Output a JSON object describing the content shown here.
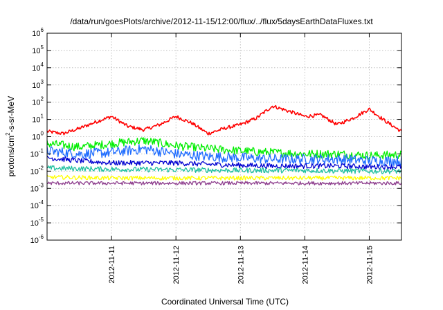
{
  "chart_data": {
    "type": "line",
    "title": "/data/run/goesPlots/archive/2012-11-15/12:00/flux/../flux/5daysEarthDataFluxes.txt",
    "xlabel": "Coordinated Universal Time (UTC)",
    "ylabel_parts": {
      "base": "protons/cm",
      "sup": "2",
      "tail": "-s-sr-MeV"
    },
    "xlim": [
      "2012-11-10 00:00",
      "2012-11-15 12:00"
    ],
    "ylim": [
      1e-06,
      1000000.0
    ],
    "yscale": "log",
    "grid": true,
    "x_ticks": [
      "2012-11-11",
      "2012-11-12",
      "2012-11-13",
      "2012-11-14",
      "2012-11-15"
    ],
    "y_ticks": [
      {
        "base": "10",
        "exp": "-6",
        "value": 1e-06
      },
      {
        "base": "10",
        "exp": "-5",
        "value": 1e-05
      },
      {
        "base": "10",
        "exp": "-4",
        "value": 0.0001
      },
      {
        "base": "10",
        "exp": "-3",
        "value": 0.001
      },
      {
        "base": "10",
        "exp": "-2",
        "value": 0.01
      },
      {
        "base": "10",
        "exp": "-1",
        "value": 0.1
      },
      {
        "base": "10",
        "exp": "0",
        "value": 1
      },
      {
        "base": "10",
        "exp": "1",
        "value": 10
      },
      {
        "base": "10",
        "exp": "2",
        "value": 100
      },
      {
        "base": "10",
        "exp": "3",
        "value": 1000
      },
      {
        "base": "10",
        "exp": "4",
        "value": 10000
      },
      {
        "base": "10",
        "exp": "5",
        "value": 100000
      },
      {
        "base": "10",
        "exp": "6",
        "value": 1000000
      }
    ],
    "series": [
      {
        "color": "#ff0000",
        "noise": 0.1,
        "x": [
          "2012-11-10 00:00",
          "2012-11-10 06:00",
          "2012-11-10 12:00",
          "2012-11-10 18:00",
          "2012-11-11 00:00",
          "2012-11-11 06:00",
          "2012-11-11 12:00",
          "2012-11-11 18:00",
          "2012-11-12 00:00",
          "2012-11-12 06:00",
          "2012-11-12 12:00",
          "2012-11-12 18:00",
          "2012-11-13 00:00",
          "2012-11-13 06:00",
          "2012-11-13 12:00",
          "2012-11-13 18:00",
          "2012-11-14 00:00",
          "2012-11-14 06:00",
          "2012-11-14 12:00",
          "2012-11-14 18:00",
          "2012-11-15 00:00",
          "2012-11-15 06:00",
          "2012-11-15 12:00"
        ],
        "values": [
          2.0,
          1.5,
          3.0,
          7.0,
          15,
          4.0,
          2.5,
          5.0,
          15,
          6.0,
          1.5,
          3.0,
          5.0,
          12,
          60,
          30,
          15,
          18,
          5.0,
          12,
          40,
          8.0,
          2.0
        ]
      },
      {
        "color": "#00ee00",
        "noise": 0.25,
        "x": [
          "2012-11-10 00:00",
          "2012-11-10 12:00",
          "2012-11-11 00:00",
          "2012-11-11 12:00",
          "2012-11-12 00:00",
          "2012-11-12 12:00",
          "2012-11-13 00:00",
          "2012-11-13 12:00",
          "2012-11-14 00:00",
          "2012-11-14 12:00",
          "2012-11-15 00:00",
          "2012-11-15 12:00"
        ],
        "values": [
          0.4,
          0.25,
          0.4,
          0.6,
          0.3,
          0.2,
          0.15,
          0.12,
          0.1,
          0.1,
          0.08,
          0.09
        ]
      },
      {
        "color": "#1e6cff",
        "noise": 0.3,
        "x": [
          "2012-11-10 00:00",
          "2012-11-10 12:00",
          "2012-11-11 00:00",
          "2012-11-11 12:00",
          "2012-11-12 00:00",
          "2012-11-12 12:00",
          "2012-11-13 00:00",
          "2012-11-13 12:00",
          "2012-11-14 00:00",
          "2012-11-14 12:00",
          "2012-11-15 00:00",
          "2012-11-15 12:00"
        ],
        "values": [
          0.15,
          0.1,
          0.12,
          0.2,
          0.1,
          0.07,
          0.06,
          0.05,
          0.05,
          0.05,
          0.04,
          0.04
        ]
      },
      {
        "color": "#0000d0",
        "noise": 0.15,
        "x": [
          "2012-11-10 00:00",
          "2012-11-10 12:00",
          "2012-11-11 00:00",
          "2012-11-11 12:00",
          "2012-11-12 00:00",
          "2012-11-12 12:00",
          "2012-11-13 00:00",
          "2012-11-13 12:00",
          "2012-11-14 00:00",
          "2012-11-14 12:00",
          "2012-11-15 00:00",
          "2012-11-15 12:00"
        ],
        "values": [
          0.06,
          0.04,
          0.03,
          0.03,
          0.03,
          0.025,
          0.022,
          0.02,
          0.02,
          0.02,
          0.018,
          0.018
        ]
      },
      {
        "color": "#20c0a0",
        "noise": 0.15,
        "x": [
          "2012-11-10 00:00",
          "2012-11-11 00:00",
          "2012-11-12 00:00",
          "2012-11-13 00:00",
          "2012-11-14 00:00",
          "2012-11-15 00:00",
          "2012-11-15 12:00"
        ],
        "values": [
          0.015,
          0.013,
          0.012,
          0.011,
          0.011,
          0.01,
          0.01
        ]
      },
      {
        "color": "#ffff00",
        "noise": 0.12,
        "x": [
          "2012-11-10 00:00",
          "2012-11-11 00:00",
          "2012-11-12 00:00",
          "2012-11-13 00:00",
          "2012-11-14 00:00",
          "2012-11-15 00:00",
          "2012-11-15 12:00"
        ],
        "values": [
          0.0045,
          0.004,
          0.004,
          0.004,
          0.004,
          0.004,
          0.004
        ]
      },
      {
        "color": "#8b3a8b",
        "noise": 0.1,
        "x": [
          "2012-11-10 00:00",
          "2012-11-11 00:00",
          "2012-11-12 00:00",
          "2012-11-13 00:00",
          "2012-11-14 00:00",
          "2012-11-15 00:00",
          "2012-11-15 12:00"
        ],
        "values": [
          0.002,
          0.002,
          0.002,
          0.002,
          0.002,
          0.002,
          0.002
        ]
      }
    ]
  }
}
